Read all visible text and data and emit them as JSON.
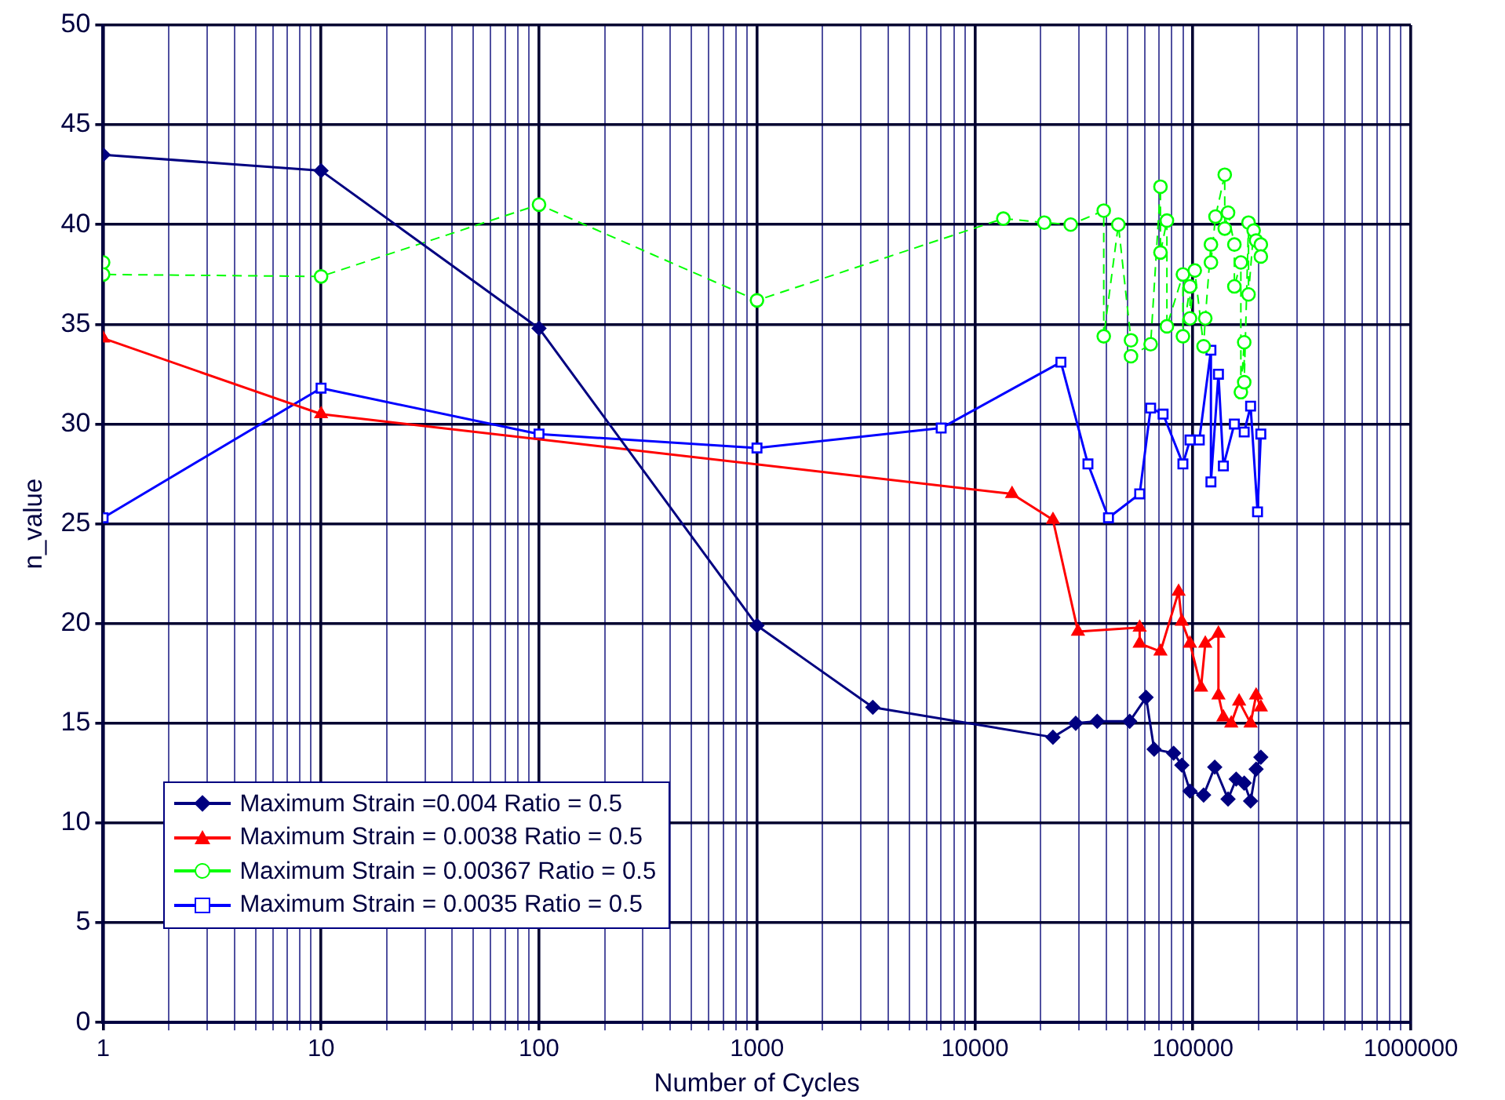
{
  "chart_data": {
    "type": "line",
    "xlabel": "Number of Cycles",
    "ylabel": "n_value",
    "log": "x",
    "grid": true,
    "legend": "bottom left",
    "xlim": [
      1,
      1000000
    ],
    "ylim": [
      0,
      50
    ],
    "xticks": [
      1,
      {
        "value": 2,
        "label": null
      },
      {
        "value": 3,
        "label": null
      },
      {
        "value": 4,
        "label": null
      },
      {
        "value": 5,
        "label": null
      },
      {
        "value": 6,
        "label": null
      },
      {
        "value": 7,
        "label": null
      },
      {
        "value": 8,
        "label": null
      },
      {
        "value": 9,
        "label": null
      },
      10,
      {
        "value": 20,
        "label": null
      },
      {
        "value": 30,
        "label": null
      },
      {
        "value": 40,
        "label": null
      },
      {
        "value": 50,
        "label": null
      },
      {
        "value": 60,
        "label": null
      },
      {
        "value": 70,
        "label": null
      },
      {
        "value": 80,
        "label": null
      },
      {
        "value": 90,
        "label": null
      },
      100,
      {
        "value": 200,
        "label": null
      },
      {
        "value": 300,
        "label": null
      },
      {
        "value": 400,
        "label": null
      },
      {
        "value": 500,
        "label": null
      },
      {
        "value": 600,
        "label": null
      },
      {
        "value": 700,
        "label": null
      },
      {
        "value": 800,
        "label": null
      },
      {
        "value": 900,
        "label": null
      },
      1000,
      {
        "value": 2000,
        "label": null
      },
      {
        "value": 3000,
        "label": null
      },
      {
        "value": 4000,
        "label": null
      },
      {
        "value": 5000,
        "label": null
      },
      {
        "value": 6000,
        "label": null
      },
      {
        "value": 7000,
        "label": null
      },
      {
        "value": 8000,
        "label": null
      },
      {
        "value": 9000,
        "label": null
      },
      10000,
      {
        "value": 20000,
        "label": null
      },
      {
        "value": 30000,
        "label": null
      },
      {
        "value": 40000,
        "label": null
      },
      {
        "value": 50000,
        "label": null
      },
      {
        "value": 60000,
        "label": null
      },
      {
        "value": 70000,
        "label": null
      },
      {
        "value": 80000,
        "label": null
      },
      {
        "value": 90000,
        "label": null
      },
      100000,
      {
        "value": 200000,
        "label": null
      },
      {
        "value": 300000,
        "label": null
      },
      {
        "value": 400000,
        "label": null
      },
      {
        "value": 500000,
        "label": null
      },
      {
        "value": 600000,
        "label": null
      },
      {
        "value": 700000,
        "label": null
      },
      {
        "value": 800000,
        "label": null
      },
      {
        "value": 900000,
        "label": null
      },
      1000000
    ],
    "yticks": [
      0,
      5,
      10,
      15,
      20,
      25,
      30,
      35,
      40,
      45,
      50
    ],
    "series": [
      {
        "name": "Maximum Strain =0.004 Ratio = 0.5",
        "color": "#000080",
        "marker": "diamond",
        "line_style": "solid",
        "x": [
          1,
          10,
          100,
          1000,
          3400,
          22800,
          29000,
          36400,
          51300,
          61000,
          66400,
          81600,
          89000,
          97000,
          112000,
          126000,
          145000,
          158000,
          172000,
          184000,
          195000,
          205000
        ],
        "values": [
          43.5,
          42.7,
          34.8,
          19.9,
          15.8,
          14.3,
          15.0,
          15.1,
          15.1,
          16.3,
          13.7,
          13.5,
          12.9,
          11.6,
          11.4,
          12.8,
          11.2,
          12.2,
          12.0,
          11.1,
          12.7,
          13.3
        ]
      },
      {
        "name": "Maximum Strain = 0.0038 Ratio = 0.5",
        "color": "#ff0000",
        "marker": "triangle",
        "line_style": "solid",
        "x": [
          1,
          10,
          14800,
          22800,
          29700,
          57000,
          57000,
          71000,
          86000,
          89000,
          97000,
          109000,
          114000,
          131000,
          131000,
          138000,
          150000,
          163000,
          184000,
          195000,
          205000
        ],
        "values": [
          34.3,
          30.5,
          26.5,
          25.2,
          19.6,
          19.8,
          19.0,
          18.6,
          21.6,
          20.1,
          19.0,
          16.8,
          19.0,
          19.5,
          16.4,
          15.3,
          15.0,
          16.1,
          15.0,
          16.4,
          15.8
        ]
      },
      {
        "name": "Maximum Strain = 0.00367 Ratio = 0.5",
        "color": "#00ff00",
        "marker": "circle",
        "line_style": "dashed",
        "x": [
          1,
          1,
          10,
          100,
          1000,
          13500,
          20800,
          27500,
          39000,
          39000,
          45500,
          52000,
          52000,
          64000,
          71000,
          71000,
          76000,
          76000,
          90000,
          90000,
          97000,
          97000,
          102000,
          112000,
          114000,
          121000,
          121000,
          127000,
          140000,
          140000,
          145000,
          155000,
          155000,
          166000,
          166000,
          172000,
          172000,
          180000,
          180000,
          190000,
          195000,
          205000,
          205000
        ],
        "values": [
          38.1,
          37.5,
          37.4,
          41.0,
          36.2,
          40.3,
          40.1,
          40.0,
          40.7,
          34.4,
          40.0,
          34.2,
          33.4,
          34.0,
          41.9,
          38.6,
          40.2,
          34.9,
          37.5,
          34.4,
          36.9,
          35.3,
          37.7,
          33.9,
          35.3,
          39.0,
          38.1,
          40.4,
          42.5,
          39.8,
          40.6,
          39.0,
          36.9,
          38.1,
          31.6,
          34.1,
          32.1,
          40.1,
          36.5,
          39.7,
          39.2,
          39.0,
          38.4
        ]
      },
      {
        "name": "Maximum Strain = 0.0035 Ratio = 0.5",
        "color": "#0000ff",
        "marker": "square",
        "line_style": "solid",
        "x": [
          1,
          10,
          100,
          1000,
          7000,
          24800,
          33000,
          41000,
          57000,
          64000,
          73000,
          90000,
          97000,
          107000,
          121000,
          121000,
          131000,
          138000,
          155000,
          172000,
          184000,
          198000,
          205000
        ],
        "values": [
          25.3,
          31.8,
          29.5,
          28.8,
          29.8,
          33.1,
          28.0,
          25.3,
          26.5,
          30.8,
          30.5,
          28.0,
          29.2,
          29.2,
          33.7,
          27.1,
          32.5,
          27.9,
          30.0,
          29.6,
          30.9,
          25.6,
          29.5
        ]
      }
    ]
  }
}
